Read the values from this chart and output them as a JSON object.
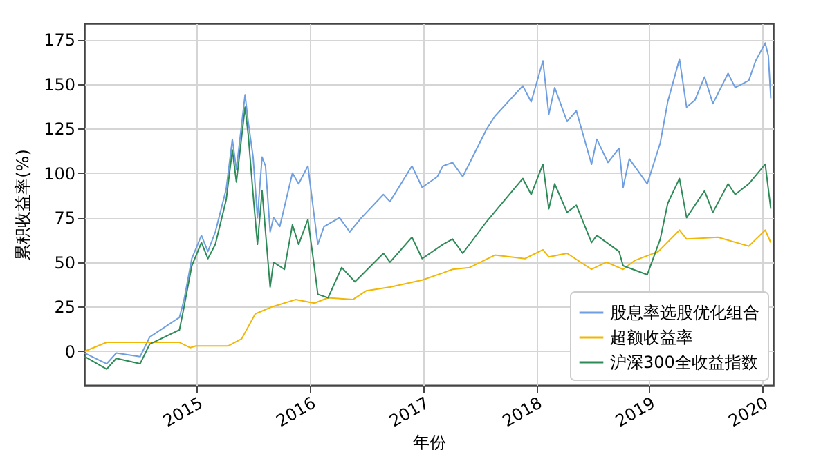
{
  "chart_data": {
    "type": "line",
    "xlabel": "年份",
    "ylabel": "累积收益率(%)",
    "xlim": [
      "2014-01-02",
      "2020-02-05"
    ],
    "xticks": [
      {
        "value": "2015-01-01",
        "label": "2015"
      },
      {
        "value": "2016-01-01",
        "label": "2016"
      },
      {
        "value": "2017-01-01",
        "label": "2017"
      },
      {
        "value": "2018-01-01",
        "label": "2018"
      },
      {
        "value": "2019-01-01",
        "label": "2019"
      },
      {
        "value": "2020-01-01",
        "label": "2020"
      }
    ],
    "ylim": [
      -19,
      184
    ],
    "yticks": [
      0,
      25,
      50,
      75,
      100,
      125,
      150,
      175
    ],
    "grid": true,
    "legend": "bottom right",
    "series": [
      {
        "name": "股息率选股优化组合",
        "color": "#6f9fe0",
        "x": [
          "2014-01-03",
          "2014-03-15",
          "2014-04-15",
          "2014-07-01",
          "2014-08-01",
          "2014-11-05",
          "2014-11-20",
          "2014-12-15",
          "2015-01-15",
          "2015-02-05",
          "2015-03-01",
          "2015-04-05",
          "2015-04-25",
          "2015-05-08",
          "2015-06-05",
          "2015-06-15",
          "2015-07-01",
          "2015-07-15",
          "2015-07-30",
          "2015-08-10",
          "2015-08-25",
          "2015-09-05",
          "2015-09-25",
          "2015-11-05",
          "2015-11-25",
          "2015-12-25",
          "2016-01-15",
          "2016-01-26",
          "2016-02-15",
          "2016-04-05",
          "2016-05-08",
          "2016-06-15",
          "2016-08-25",
          "2016-09-15",
          "2016-11-25",
          "2016-12-28",
          "2017-02-15",
          "2017-03-05",
          "2017-04-05",
          "2017-05-08",
          "2017-07-25",
          "2017-08-20",
          "2017-11-18",
          "2017-12-15",
          "2018-01-22",
          "2018-02-10",
          "2018-03-01",
          "2018-04-10",
          "2018-05-10",
          "2018-06-28",
          "2018-07-15",
          "2018-08-20",
          "2018-09-25",
          "2018-10-08",
          "2018-10-28",
          "2018-12-25",
          "2019-02-05",
          "2019-03-01",
          "2019-04-08",
          "2019-05-01",
          "2019-05-28",
          "2019-06-28",
          "2019-07-25",
          "2019-09-12",
          "2019-10-05",
          "2019-11-18",
          "2019-12-10",
          "2020-01-10",
          "2020-01-20",
          "2020-01-28"
        ],
        "values": [
          -1,
          -7,
          -1,
          -3,
          8,
          19,
          29,
          52,
          65,
          56,
          67,
          91,
          119,
          102,
          144,
          129,
          109,
          75,
          109,
          104,
          67,
          75,
          70,
          100,
          94,
          104,
          75,
          60,
          70,
          75,
          67,
          75,
          88,
          84,
          104,
          92,
          98,
          104,
          106,
          98,
          125,
          132,
          149,
          140,
          163,
          133,
          148,
          129,
          135,
          105,
          119,
          106,
          114,
          92,
          108,
          94,
          117,
          140,
          164,
          137,
          141,
          154,
          139,
          156,
          148,
          152,
          163,
          173,
          166,
          142
        ]
      },
      {
        "name": "超额收益率",
        "color": "#f2b705",
        "x": [
          "2014-01-03",
          "2014-03-15",
          "2014-11-05",
          "2014-12-10",
          "2014-12-28",
          "2015-04-12",
          "2015-05-25",
          "2015-07-08",
          "2015-09-01",
          "2015-11-15",
          "2016-01-15",
          "2016-02-28",
          "2016-05-18",
          "2016-07-01",
          "2016-09-15",
          "2016-12-28",
          "2017-03-05",
          "2017-04-05",
          "2017-05-30",
          "2017-08-20",
          "2017-11-25",
          "2018-01-22",
          "2018-02-10",
          "2018-04-10",
          "2018-06-28",
          "2018-08-15",
          "2018-10-08",
          "2018-11-15",
          "2019-01-30",
          "2019-04-08",
          "2019-05-01",
          "2019-08-10",
          "2019-11-18",
          "2020-01-10",
          "2020-01-28"
        ],
        "values": [
          0,
          5,
          5,
          2,
          3,
          3,
          7,
          21,
          25,
          29,
          27,
          30,
          29,
          34,
          36,
          40,
          44,
          46,
          47,
          54,
          52,
          57,
          53,
          55,
          46,
          50,
          46,
          51,
          56,
          68,
          63,
          64,
          59,
          68,
          61
        ]
      },
      {
        "name": "沪深300全收益指数",
        "color": "#2e8b57",
        "x": [
          "2014-01-03",
          "2014-03-15",
          "2014-04-15",
          "2014-07-01",
          "2014-08-01",
          "2014-11-05",
          "2014-11-20",
          "2014-12-15",
          "2015-01-15",
          "2015-02-05",
          "2015-03-01",
          "2015-04-05",
          "2015-04-25",
          "2015-05-08",
          "2015-06-05",
          "2015-06-15",
          "2015-07-01",
          "2015-07-15",
          "2015-07-30",
          "2015-08-25",
          "2015-09-05",
          "2015-10-10",
          "2015-11-05",
          "2015-11-25",
          "2015-12-25",
          "2016-01-15",
          "2016-01-26",
          "2016-02-28",
          "2016-04-12",
          "2016-05-25",
          "2016-08-25",
          "2016-09-15",
          "2016-11-25",
          "2016-12-28",
          "2017-03-05",
          "2017-04-05",
          "2017-05-08",
          "2017-07-25",
          "2017-11-18",
          "2017-12-15",
          "2018-01-22",
          "2018-02-10",
          "2018-03-01",
          "2018-04-10",
          "2018-05-10",
          "2018-06-28",
          "2018-07-15",
          "2018-09-25",
          "2018-10-08",
          "2018-12-25",
          "2019-02-05",
          "2019-03-01",
          "2019-04-08",
          "2019-05-01",
          "2019-06-28",
          "2019-07-25",
          "2019-09-12",
          "2019-10-05",
          "2019-11-18",
          "2020-01-10",
          "2020-01-28"
        ],
        "values": [
          -3,
          -10,
          -4,
          -7,
          4,
          12,
          25,
          48,
          61,
          52,
          60,
          85,
          113,
          95,
          137,
          122,
          88,
          60,
          90,
          36,
          50,
          46,
          71,
          60,
          74,
          47,
          32,
          30,
          47,
          39,
          55,
          50,
          64,
          52,
          60,
          63,
          55,
          73,
          97,
          88,
          105,
          80,
          94,
          78,
          82,
          61,
          65,
          56,
          48,
          43,
          63,
          83,
          97,
          75,
          90,
          78,
          94,
          88,
          94,
          105,
          80
        ]
      }
    ]
  }
}
